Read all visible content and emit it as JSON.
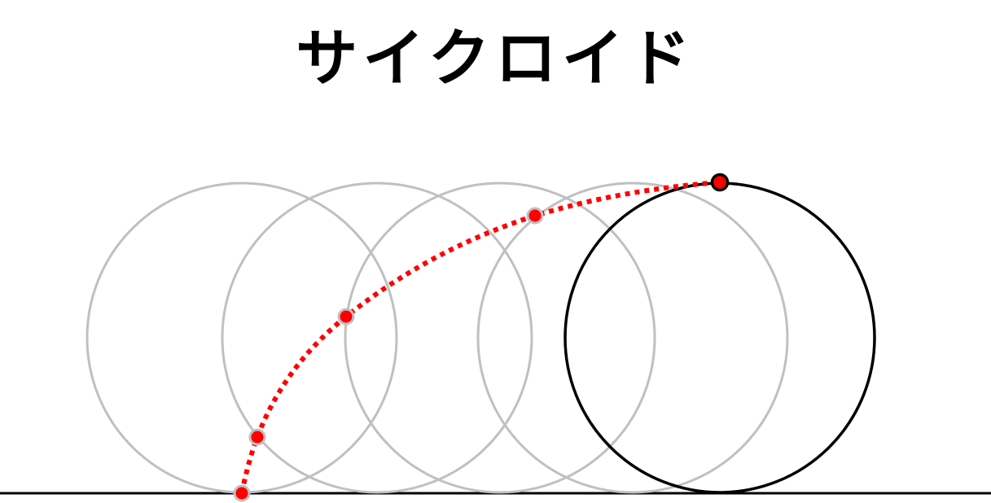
{
  "title": "サイクロイド",
  "colors": {
    "rolled_circle": "#c0c0c0",
    "current_circle": "#000000",
    "trace": "#ff0000",
    "trace_point_ring_past": "#c0c0c0",
    "trace_point_ring_current": "#000000",
    "ground": "#000000",
    "background": "#ffffff"
  },
  "diagram": {
    "rolled_circle_count": 4,
    "trace_points_shown": 5,
    "trace_style": "dotted"
  }
}
